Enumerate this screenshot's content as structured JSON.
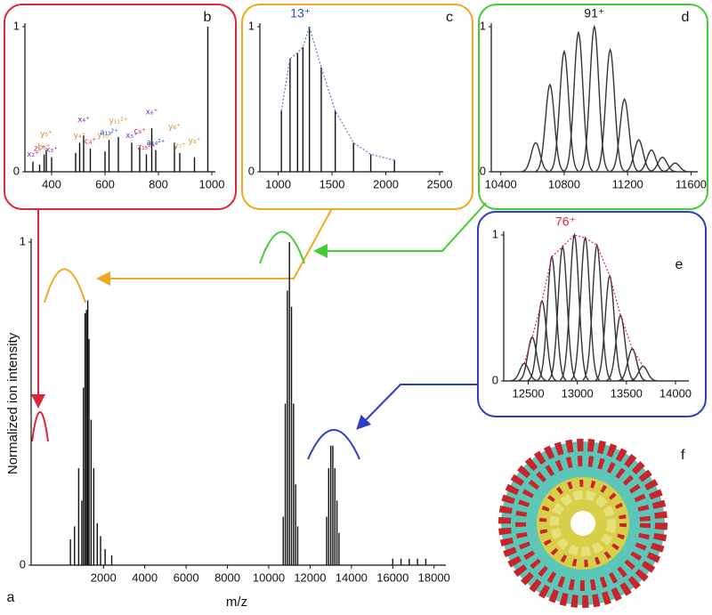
{
  "chart_data": [
    {
      "type": "stem",
      "panel": "a",
      "x_label": "m/z",
      "y_label": "Normalized ion intensity",
      "x": [
        400,
        600,
        800,
        950,
        1030,
        1110,
        1180,
        1240,
        1300,
        1400,
        1530,
        1700,
        1860,
        2080,
        2400,
        10700,
        10800,
        10900,
        11000,
        11100,
        11200,
        11300,
        11400,
        12800,
        12900,
        13000,
        13100,
        13200,
        13300,
        13400,
        16000,
        16400,
        16800,
        17200,
        17600
      ],
      "values": [
        0.08,
        0.12,
        0.3,
        0.2,
        0.55,
        0.78,
        0.79,
        0.82,
        0.7,
        0.45,
        0.3,
        0.13,
        0.09,
        0.05,
        0.03,
        0.15,
        0.5,
        0.85,
        1.0,
        0.8,
        0.5,
        0.25,
        0.12,
        0.15,
        0.3,
        0.37,
        0.37,
        0.3,
        0.2,
        0.1,
        0.02,
        0.02,
        0.02,
        0.02,
        0.02
      ],
      "color": "#111111",
      "xlim": [
        -1500,
        18400
      ],
      "xticks": [
        2000,
        4000,
        6000,
        8000,
        10000,
        12000,
        14000,
        16000,
        18000
      ],
      "ylim": [
        0,
        1
      ],
      "yticks": [
        0,
        1
      ]
    },
    {
      "type": "stem",
      "panel": "b",
      "color": "#111111",
      "x": [
        330,
        355,
        372,
        380,
        400,
        490,
        505,
        520,
        545,
        600,
        615,
        650,
        700,
        730,
        755,
        775,
        790,
        860,
        880,
        935,
        985
      ],
      "values": [
        0.07,
        0.05,
        0.12,
        0.15,
        0.1,
        0.13,
        0.2,
        0.25,
        0.16,
        0.14,
        0.22,
        0.24,
        0.2,
        0.17,
        0.12,
        0.3,
        0.15,
        0.2,
        0.13,
        0.1,
        1.0
      ],
      "peak_labels": [
        "x₂⁺",
        "z₅⁺",
        "b₅⁺",
        "y₅⁺",
        "x₃⁺",
        null,
        "y₄⁺",
        "x₄⁺",
        "c₄⁺",
        "y₁₀⁺",
        "a₁₁²⁺",
        "y₁₁²⁺",
        "x₅⁺",
        "c₉⁺",
        "z₁₅²⁺",
        "x₆⁺",
        "a₁₄²⁺",
        "y₆⁺",
        "y₇⁺",
        "y₈⁺",
        null
      ],
      "peak_label_colors": [
        "#8a2fc0",
        "#e0243c",
        "#d98a2a",
        "#d98a2a",
        "#8a2fc0",
        null,
        "#d98a2a",
        "#8a2fc0",
        "#e0243c",
        "#d98a2a",
        "#2a4ec8",
        "#d98a2a",
        "#8a2fc0",
        "#e0243c",
        "#e0243c",
        "#8a2fc0",
        "#2a4ec8",
        "#d98a2a",
        "#d98a2a",
        "#d98a2a",
        null
      ],
      "xlim": [
        300,
        1000
      ],
      "xticks": [
        400,
        600,
        800,
        1000
      ],
      "ylim": [
        0,
        1
      ],
      "yticks": [
        0,
        1
      ]
    },
    {
      "type": "stem",
      "panel": "c",
      "color": "#111111",
      "envelope": true,
      "envelope_color": "#5a78c8",
      "annotation": "13⁺",
      "annotation_color": "#2a4ec8",
      "x": [
        1030,
        1110,
        1180,
        1230,
        1290,
        1400,
        1530,
        1700,
        1860,
        2080
      ],
      "values": [
        0.42,
        0.78,
        0.82,
        0.86,
        1.0,
        0.72,
        0.42,
        0.2,
        0.12,
        0.08
      ],
      "xlim": [
        830,
        2500
      ],
      "xticks": [
        1000,
        1500,
        2000,
        2500
      ],
      "ylim": [
        0,
        1
      ],
      "yticks": [
        0,
        1
      ]
    },
    {
      "type": "profile",
      "panel": "d",
      "color": "#333333",
      "annotation": "91⁺",
      "annotation_color": "#111111",
      "x": [
        10620,
        10710,
        10800,
        10890,
        10990,
        11090,
        11180,
        11270,
        11350,
        11420,
        11500
      ],
      "values": [
        0.2,
        0.6,
        0.83,
        0.96,
        1.0,
        0.84,
        0.5,
        0.22,
        0.15,
        0.1,
        0.06
      ],
      "xlim": [
        10340,
        11620
      ],
      "xticks": [
        10400,
        10800,
        11200,
        11600
      ],
      "ylim": [
        0,
        1
      ],
      "yticks": [
        0,
        1
      ]
    },
    {
      "type": "profile",
      "panel": "e",
      "color": "#333333",
      "envelope": true,
      "envelope_color": "#e0243c",
      "annotation": "76⁺",
      "annotation_color": "#e0243c",
      "x": [
        12460,
        12540,
        12640,
        12740,
        12850,
        12970,
        13080,
        13200,
        13330,
        13440,
        13560,
        13670
      ],
      "values": [
        0.12,
        0.3,
        0.55,
        0.85,
        0.92,
        1.0,
        0.98,
        0.93,
        0.72,
        0.45,
        0.22,
        0.1
      ],
      "xlim": [
        12250,
        14100
      ],
      "xticks": [
        12500,
        13000,
        13500,
        14000
      ],
      "ylim": [
        0,
        1
      ],
      "yticks": [
        0,
        1
      ]
    }
  ],
  "structure_panel": {
    "label": "f"
  }
}
